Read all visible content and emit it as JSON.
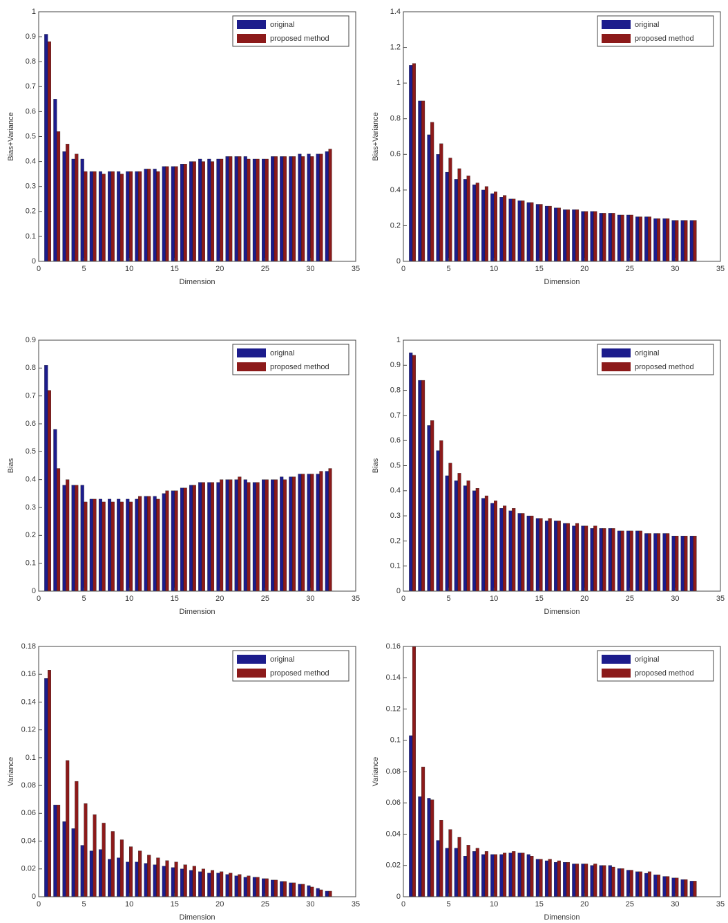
{
  "chart_data": [
    {
      "type": "bar",
      "ylabel": "Bias+Variance",
      "xlabel": "Dimension",
      "legend": "upper right",
      "x": [
        1,
        2,
        3,
        4,
        5,
        6,
        7,
        8,
        9,
        10,
        11,
        12,
        13,
        14,
        15,
        16,
        17,
        18,
        19,
        20,
        21,
        22,
        23,
        24,
        25,
        26,
        27,
        28,
        29,
        30,
        31,
        32
      ],
      "xlim": [
        0,
        35
      ],
      "xticks": [
        0,
        5,
        10,
        15,
        20,
        25,
        30,
        35
      ],
      "ylim": [
        0,
        1
      ],
      "yticks": [
        0,
        0.1,
        0.2,
        0.3,
        0.4,
        0.5,
        0.6,
        0.7,
        0.8,
        0.9,
        1
      ],
      "series": [
        {
          "name": "original",
          "color": "#1c1c8c",
          "values": [
            0.91,
            0.65,
            0.44,
            0.41,
            0.41,
            0.36,
            0.36,
            0.36,
            0.36,
            0.36,
            0.36,
            0.37,
            0.37,
            0.38,
            0.38,
            0.39,
            0.4,
            0.41,
            0.41,
            0.41,
            0.42,
            0.42,
            0.42,
            0.41,
            0.41,
            0.42,
            0.42,
            0.42,
            0.43,
            0.43,
            0.43,
            0.44
          ]
        },
        {
          "name": "proposed method",
          "color": "#8c1a1a",
          "values": [
            0.88,
            0.52,
            0.47,
            0.43,
            0.36,
            0.36,
            0.35,
            0.36,
            0.35,
            0.36,
            0.36,
            0.37,
            0.36,
            0.38,
            0.38,
            0.39,
            0.4,
            0.4,
            0.4,
            0.41,
            0.42,
            0.42,
            0.41,
            0.41,
            0.41,
            0.42,
            0.42,
            0.42,
            0.42,
            0.42,
            0.43,
            0.45
          ]
        }
      ]
    },
    {
      "type": "bar",
      "ylabel": "Bias+Variance",
      "xlabel": "Dimension",
      "legend": "upper right",
      "x": [
        1,
        2,
        3,
        4,
        5,
        6,
        7,
        8,
        9,
        10,
        11,
        12,
        13,
        14,
        15,
        16,
        17,
        18,
        19,
        20,
        21,
        22,
        23,
        24,
        25,
        26,
        27,
        28,
        29,
        30,
        31,
        32
      ],
      "xlim": [
        0,
        35
      ],
      "xticks": [
        0,
        5,
        10,
        15,
        20,
        25,
        30,
        35
      ],
      "ylim": [
        0,
        1.4
      ],
      "yticks": [
        0,
        0.2,
        0.4,
        0.6,
        0.8,
        1,
        1.2,
        1.4
      ],
      "series": [
        {
          "name": "original",
          "color": "#1c1c8c",
          "values": [
            1.1,
            0.9,
            0.71,
            0.6,
            0.5,
            0.46,
            0.46,
            0.43,
            0.4,
            0.38,
            0.36,
            0.35,
            0.34,
            0.33,
            0.32,
            0.31,
            0.3,
            0.29,
            0.29,
            0.28,
            0.28,
            0.27,
            0.27,
            0.26,
            0.26,
            0.25,
            0.25,
            0.24,
            0.24,
            0.23,
            0.23,
            0.23
          ]
        },
        {
          "name": "proposed method",
          "color": "#8c1a1a",
          "values": [
            1.11,
            0.9,
            0.78,
            0.66,
            0.58,
            0.52,
            0.48,
            0.44,
            0.42,
            0.39,
            0.37,
            0.35,
            0.34,
            0.33,
            0.32,
            0.31,
            0.3,
            0.29,
            0.29,
            0.28,
            0.28,
            0.27,
            0.27,
            0.26,
            0.26,
            0.25,
            0.25,
            0.24,
            0.24,
            0.23,
            0.23,
            0.23
          ]
        }
      ]
    },
    {
      "type": "bar",
      "ylabel": "Bias",
      "xlabel": "Dimension",
      "legend": "upper right",
      "x": [
        1,
        2,
        3,
        4,
        5,
        6,
        7,
        8,
        9,
        10,
        11,
        12,
        13,
        14,
        15,
        16,
        17,
        18,
        19,
        20,
        21,
        22,
        23,
        24,
        25,
        26,
        27,
        28,
        29,
        30,
        31,
        32
      ],
      "xlim": [
        0,
        35
      ],
      "xticks": [
        0,
        5,
        10,
        15,
        20,
        25,
        30,
        35
      ],
      "ylim": [
        0,
        0.9
      ],
      "yticks": [
        0,
        0.1,
        0.2,
        0.3,
        0.4,
        0.5,
        0.6,
        0.7,
        0.8,
        0.9
      ],
      "series": [
        {
          "name": "original",
          "color": "#1c1c8c",
          "values": [
            0.81,
            0.58,
            0.38,
            0.38,
            0.38,
            0.33,
            0.33,
            0.33,
            0.33,
            0.33,
            0.33,
            0.34,
            0.34,
            0.35,
            0.36,
            0.37,
            0.38,
            0.39,
            0.39,
            0.39,
            0.4,
            0.4,
            0.4,
            0.39,
            0.4,
            0.4,
            0.41,
            0.41,
            0.42,
            0.42,
            0.42,
            0.43
          ]
        },
        {
          "name": "proposed method",
          "color": "#8c1a1a",
          "values": [
            0.72,
            0.44,
            0.4,
            0.38,
            0.32,
            0.33,
            0.32,
            0.32,
            0.32,
            0.32,
            0.34,
            0.34,
            0.33,
            0.36,
            0.36,
            0.37,
            0.38,
            0.39,
            0.39,
            0.4,
            0.4,
            0.41,
            0.39,
            0.39,
            0.4,
            0.4,
            0.4,
            0.41,
            0.42,
            0.42,
            0.43,
            0.44
          ]
        }
      ]
    },
    {
      "type": "bar",
      "ylabel": "Bias",
      "xlabel": "Dimension",
      "legend": "upper right",
      "x": [
        1,
        2,
        3,
        4,
        5,
        6,
        7,
        8,
        9,
        10,
        11,
        12,
        13,
        14,
        15,
        16,
        17,
        18,
        19,
        20,
        21,
        22,
        23,
        24,
        25,
        26,
        27,
        28,
        29,
        30,
        31,
        32
      ],
      "xlim": [
        0,
        35
      ],
      "xticks": [
        0,
        5,
        10,
        15,
        20,
        25,
        30,
        35
      ],
      "ylim": [
        0,
        1
      ],
      "yticks": [
        0,
        0.1,
        0.2,
        0.3,
        0.4,
        0.5,
        0.6,
        0.7,
        0.8,
        0.9,
        1
      ],
      "series": [
        {
          "name": "original",
          "color": "#1c1c8c",
          "values": [
            0.95,
            0.84,
            0.66,
            0.56,
            0.46,
            0.44,
            0.42,
            0.4,
            0.37,
            0.35,
            0.33,
            0.32,
            0.31,
            0.3,
            0.29,
            0.28,
            0.28,
            0.27,
            0.26,
            0.26,
            0.25,
            0.25,
            0.25,
            0.24,
            0.24,
            0.24,
            0.23,
            0.23,
            0.23,
            0.22,
            0.22,
            0.22
          ]
        },
        {
          "name": "proposed method",
          "color": "#8c1a1a",
          "values": [
            0.94,
            0.84,
            0.68,
            0.6,
            0.51,
            0.47,
            0.44,
            0.41,
            0.38,
            0.36,
            0.34,
            0.33,
            0.31,
            0.3,
            0.29,
            0.29,
            0.28,
            0.27,
            0.27,
            0.26,
            0.26,
            0.25,
            0.25,
            0.24,
            0.24,
            0.24,
            0.23,
            0.23,
            0.23,
            0.22,
            0.22,
            0.22
          ]
        }
      ]
    },
    {
      "type": "bar",
      "ylabel": "Variance",
      "xlabel": "Dimension",
      "legend": "upper right",
      "x": [
        1,
        2,
        3,
        4,
        5,
        6,
        7,
        8,
        9,
        10,
        11,
        12,
        13,
        14,
        15,
        16,
        17,
        18,
        19,
        20,
        21,
        22,
        23,
        24,
        25,
        26,
        27,
        28,
        29,
        30,
        31,
        32
      ],
      "xlim": [
        0,
        35
      ],
      "xticks": [
        0,
        5,
        10,
        15,
        20,
        25,
        30,
        35
      ],
      "ylim": [
        0,
        0.18
      ],
      "yticks": [
        0,
        0.02,
        0.04,
        0.06,
        0.08,
        0.1,
        0.12,
        0.14,
        0.16,
        0.18
      ],
      "series": [
        {
          "name": "original",
          "color": "#1c1c8c",
          "values": [
            0.157,
            0.066,
            0.054,
            0.049,
            0.037,
            0.033,
            0.034,
            0.027,
            0.028,
            0.025,
            0.025,
            0.024,
            0.023,
            0.022,
            0.021,
            0.02,
            0.019,
            0.018,
            0.017,
            0.017,
            0.016,
            0.015,
            0.014,
            0.014,
            0.013,
            0.012,
            0.011,
            0.01,
            0.009,
            0.008,
            0.006,
            0.004
          ]
        },
        {
          "name": "proposed method",
          "color": "#8c1a1a",
          "values": [
            0.163,
            0.066,
            0.098,
            0.083,
            0.067,
            0.059,
            0.053,
            0.047,
            0.041,
            0.036,
            0.033,
            0.03,
            0.028,
            0.026,
            0.025,
            0.023,
            0.022,
            0.02,
            0.019,
            0.018,
            0.017,
            0.016,
            0.015,
            0.014,
            0.013,
            0.012,
            0.011,
            0.01,
            0.009,
            0.007,
            0.005,
            0.004
          ]
        }
      ]
    },
    {
      "type": "bar",
      "ylabel": "Variance",
      "xlabel": "Dimension",
      "legend": "upper right",
      "x": [
        1,
        2,
        3,
        4,
        5,
        6,
        7,
        8,
        9,
        10,
        11,
        12,
        13,
        14,
        15,
        16,
        17,
        18,
        19,
        20,
        21,
        22,
        23,
        24,
        25,
        26,
        27,
        28,
        29,
        30,
        31,
        32
      ],
      "xlim": [
        0,
        35
      ],
      "xticks": [
        0,
        5,
        10,
        15,
        20,
        25,
        30,
        35
      ],
      "ylim": [
        0,
        0.16
      ],
      "yticks": [
        0,
        0.02,
        0.04,
        0.06,
        0.08,
        0.1,
        0.12,
        0.14,
        0.16
      ],
      "series": [
        {
          "name": "original",
          "color": "#1c1c8c",
          "values": [
            0.103,
            0.064,
            0.063,
            0.036,
            0.031,
            0.031,
            0.026,
            0.029,
            0.027,
            0.027,
            0.027,
            0.028,
            0.028,
            0.027,
            0.024,
            0.023,
            0.022,
            0.022,
            0.021,
            0.021,
            0.02,
            0.02,
            0.02,
            0.018,
            0.017,
            0.016,
            0.015,
            0.014,
            0.013,
            0.012,
            0.011,
            0.01
          ]
        },
        {
          "name": "proposed method",
          "color": "#8c1a1a",
          "values": [
            0.16,
            0.083,
            0.062,
            0.049,
            0.043,
            0.038,
            0.033,
            0.031,
            0.029,
            0.027,
            0.028,
            0.029,
            0.028,
            0.026,
            0.024,
            0.024,
            0.023,
            0.022,
            0.021,
            0.021,
            0.021,
            0.02,
            0.019,
            0.018,
            0.017,
            0.016,
            0.016,
            0.014,
            0.013,
            0.012,
            0.011,
            0.01
          ]
        }
      ]
    }
  ]
}
